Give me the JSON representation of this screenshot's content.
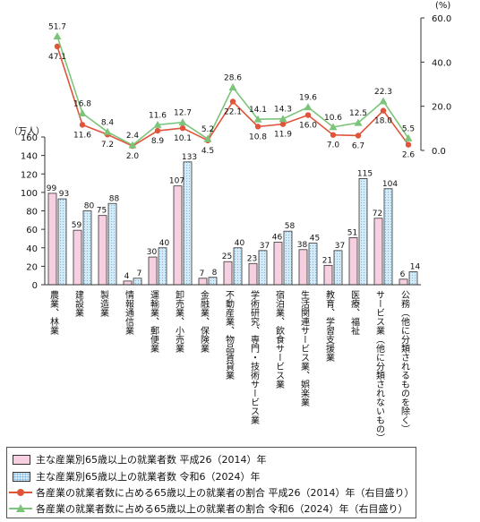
{
  "chart_data": {
    "type": "bar",
    "categories": [
      "農業、林業",
      "建設業",
      "製造業",
      "情報通信業",
      "運輸業、郵便業",
      "卸売業、小売業",
      "金融業、保険業",
      "不動産業、物品賃貸業",
      "学術研究、専門・技術サービス業",
      "宿泊業、飲食サービス業",
      "生活関連サービス業、娯楽業",
      "教育、学習支援業",
      "医療、福祉",
      "サービス業（他に分類されないもの）",
      "公務（他に分類されるものを除く）"
    ],
    "bar_series": [
      {
        "name": "主な産業別65歳以上の就業者数 平成26（2014）年",
        "values": [
          99,
          59,
          75,
          4,
          30,
          107,
          7,
          25,
          23,
          46,
          38,
          21,
          51,
          72,
          6
        ],
        "labels": [
          "99",
          "59",
          "75",
          "4",
          "30",
          "107",
          "7",
          "25",
          "23",
          "46",
          "38",
          "21",
          "51",
          "72",
          "6"
        ]
      },
      {
        "name": "主な産業別65歳以上の就業者数 令和6（2024）年",
        "values": [
          93,
          80,
          88,
          7,
          40,
          133,
          8,
          40,
          37,
          58,
          45,
          37,
          115,
          104,
          14
        ],
        "labels": [
          "93",
          "80",
          "88",
          "7",
          "40",
          "133",
          "8",
          "40",
          "37",
          "58",
          "45",
          "37",
          "115",
          "104",
          "14"
        ]
      }
    ],
    "line_series": [
      {
        "name": "各産業の就業者数に占める65歳以上の就業者の割合 平成26（2014）年（右目盛り）",
        "values": [
          47.1,
          11.6,
          7.2,
          2.0,
          8.9,
          10.1,
          4.5,
          22.1,
          10.8,
          11.9,
          16.0,
          7.0,
          6.7,
          18.0,
          2.6
        ],
        "labels": [
          "47.1",
          "11.6",
          "7.2",
          "2.0",
          "8.9",
          "10.1",
          "4.5",
          "22.1",
          "10.8",
          "11.9",
          "16.0",
          "7.0",
          "6.7",
          "18.0",
          "2.6"
        ]
      },
      {
        "name": "各産業の就業者数に占める65歳以上の就業者の割合 令和6（2024）年（右目盛り）",
        "values": [
          51.7,
          16.8,
          8.4,
          2.4,
          11.6,
          12.7,
          5.2,
          28.6,
          14.1,
          14.3,
          19.6,
          10.6,
          12.5,
          22.3,
          5.5
        ],
        "labels": [
          "51.7",
          "16.8",
          "8.4",
          "2.4",
          "11.6",
          "12.7",
          "5.2",
          "28.6",
          "14.1",
          "14.3",
          "19.6",
          "10.6",
          "12.5",
          "22.3",
          "5.5"
        ]
      }
    ],
    "left_axis": {
      "unit": "（万人）",
      "ylim": [
        0,
        160
      ],
      "ticks": [
        "0",
        "20",
        "40",
        "60",
        "80",
        "100",
        "120",
        "140",
        "160"
      ]
    },
    "right_axis": {
      "unit": "(%)",
      "ylim": [
        0,
        60
      ],
      "ticks": [
        "0.0",
        "20.0",
        "40.0",
        "60.0"
      ]
    },
    "colors": {
      "bar2014": "#f6cfe0",
      "bar2024": "#d6ebf8",
      "bar_dots": "#7ab6dc",
      "line2014": "#e0543a",
      "line2024": "#7cc47a"
    }
  },
  "legend": {
    "bar2014": "主な産業別65歳以上の就業者数 平成26（2014）年",
    "bar2024": "主な産業別65歳以上の就業者数 令和6（2024）年",
    "line2014": "各産業の就業者数に占める65歳以上の就業者の割合 平成26（2014）年（右目盛り）",
    "line2024": "各産業の就業者数に占める65歳以上の就業者の割合 令和6（2024）年（右目盛り）"
  }
}
